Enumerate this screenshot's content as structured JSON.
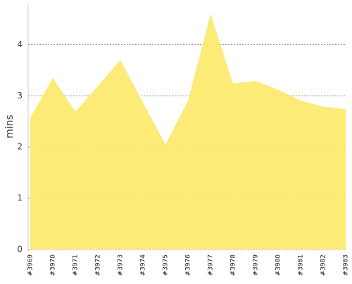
{
  "chart_data": {
    "type": "area",
    "y_label": "mins",
    "categories": [
      "#3969",
      "#3970",
      "#3971",
      "#3972",
      "#3973",
      "#3974",
      "#3975",
      "#3976",
      "#3977",
      "#3978",
      "#3979",
      "#3980",
      "#3981",
      "#3982",
      "#3983"
    ],
    "values": [
      2.57,
      3.35,
      2.69,
      3.19,
      3.7,
      2.87,
      2.05,
      2.9,
      4.6,
      3.24,
      3.29,
      3.12,
      2.91,
      2.79,
      2.74
    ],
    "color": "#fce96a",
    "ylim": [
      0,
      4.8
    ],
    "yticks": [
      0,
      1,
      2,
      3,
      4
    ],
    "grid": true
  }
}
